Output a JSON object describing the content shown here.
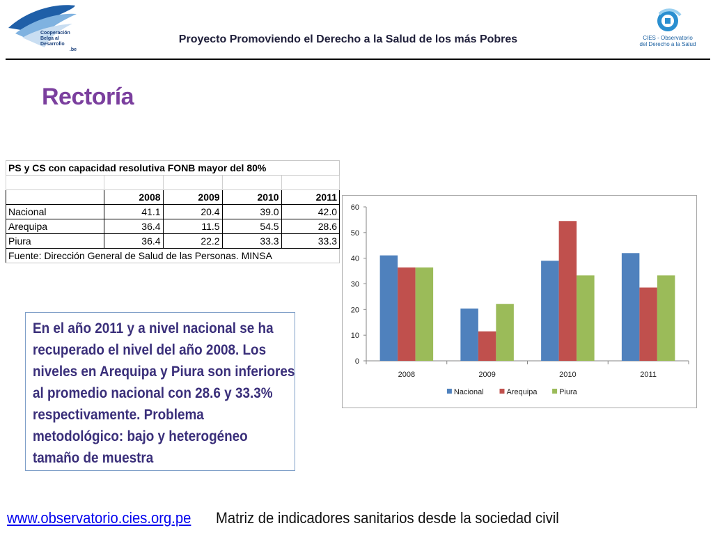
{
  "header": {
    "title": "Proyecto Promoviendo el Derecho a la Salud de los más Pobres",
    "logo_left": {
      "line1": "Cooperación",
      "line2": "Belga al Desarrollo",
      "line3": ".be"
    },
    "logo_right": {
      "line1": "CIES - Observatorio",
      "line2": "del Derecho a la Salud"
    }
  },
  "slide_title": "Rectoría",
  "table": {
    "caption": "PS y CS con capacidad resolutiva FONB mayor del 80%",
    "years": [
      "2008",
      "2009",
      "2010",
      "2011"
    ],
    "rows": [
      {
        "name": "Nacional",
        "values": [
          "41.1",
          "20.4",
          "39.0",
          "42.0"
        ]
      },
      {
        "name": "Arequipa",
        "values": [
          "36.4",
          "11.5",
          "54.5",
          "28.6"
        ]
      },
      {
        "name": "Piura",
        "values": [
          "36.4",
          "22.2",
          "33.3",
          "33.3"
        ]
      }
    ],
    "source": "Fuente: Dirección General de Salud de las Personas. MINSA"
  },
  "note": "En el año 2011 y a nivel nacional se ha recuperado el nivel del año 2008. Los niveles en Arequipa y Piura son inferiores al promedio nacional con 28.6 y 33.3% respectivamente. Problema metodológico: bajo y heterogéneo tamaño de muestra",
  "chart_data": {
    "type": "bar",
    "title": "",
    "xlabel": "",
    "ylabel": "",
    "categories": [
      "2008",
      "2009",
      "2010",
      "2011"
    ],
    "series": [
      {
        "name": "Nacional",
        "values": [
          41.1,
          20.4,
          39.0,
          42.0
        ],
        "color": "#4f81bd"
      },
      {
        "name": "Arequipa",
        "values": [
          36.4,
          11.5,
          54.5,
          28.6
        ],
        "color": "#c0504d"
      },
      {
        "name": "Piura",
        "values": [
          36.4,
          22.2,
          33.3,
          33.3
        ],
        "color": "#9bbb59"
      }
    ],
    "ylim": [
      0,
      60
    ],
    "yticks": [
      0,
      10,
      20,
      30,
      40,
      50,
      60
    ],
    "ytick_labels": [
      "0",
      "10",
      "20",
      "30",
      "40",
      "50",
      "60"
    ],
    "grid": false,
    "legend": "bottom"
  },
  "footer": {
    "link": "www.observatorio.cies.org.pe",
    "text": "Matriz de indicadores sanitarios desde la sociedad civil"
  },
  "colors": {
    "title": "#7b3f9e",
    "note_text": "#3a2f7a",
    "link": "#0000ee"
  }
}
